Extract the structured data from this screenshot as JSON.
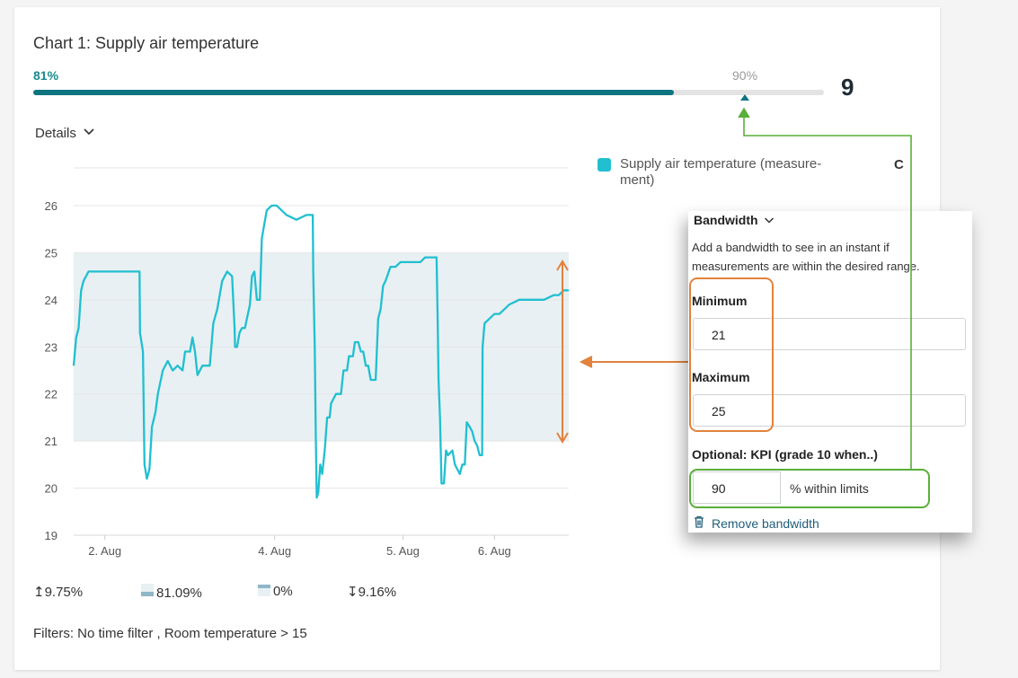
{
  "card": {
    "title": "Chart 1: Supply air temperature",
    "score_current": "81%",
    "score_target": "90%",
    "grade": "9",
    "progress_fraction": 0.81,
    "target_fraction": 0.9,
    "details_label": "Details"
  },
  "colors": {
    "accent": "#0e7480",
    "series": "#21bfd0",
    "band": "#e8f0f3",
    "annotation_orange": "#e2823c",
    "annotation_green": "#5aae3a"
  },
  "legend": {
    "label": "Supply air temperature (measure-ment)",
    "label_line1": "Supply air temperature (measure-",
    "label_line2": "ment)",
    "unit": "C"
  },
  "chart_data": {
    "type": "line",
    "ylim": [
      19,
      26.8
    ],
    "yticks": [
      "19",
      "20",
      "21",
      "22",
      "23",
      "24",
      "25",
      "26"
    ],
    "xlim": [
      0,
      100
    ],
    "xticks": [
      {
        "label": "2. Aug",
        "pos": 6.3
      },
      {
        "label": "4. Aug",
        "pos": 40.6
      },
      {
        "label": "5. Aug",
        "pos": 66.5
      },
      {
        "label": "6. Aug",
        "pos": 85.0
      }
    ],
    "band": [
      21,
      25
    ],
    "series": [
      {
        "values": [
          [
            0,
            22.6
          ],
          [
            0.5,
            23.2
          ],
          [
            1,
            23.4
          ],
          [
            1.5,
            24.2
          ],
          [
            2,
            24.4
          ],
          [
            3,
            24.6
          ],
          [
            5,
            24.6
          ],
          [
            8,
            24.6
          ],
          [
            13.3,
            24.6
          ],
          [
            13.4,
            23.3
          ],
          [
            14,
            22.9
          ],
          [
            14.3,
            20.5
          ],
          [
            14.8,
            20.2
          ],
          [
            15.3,
            20.4
          ],
          [
            15.8,
            21.3
          ],
          [
            16.5,
            21.6
          ],
          [
            17,
            22.0
          ],
          [
            18,
            22.5
          ],
          [
            19,
            22.7
          ],
          [
            20,
            22.5
          ],
          [
            21,
            22.6
          ],
          [
            22,
            22.5
          ],
          [
            22.5,
            22.9
          ],
          [
            23.5,
            22.9
          ],
          [
            24,
            23.2
          ],
          [
            24.5,
            22.9
          ],
          [
            25,
            22.4
          ],
          [
            26,
            22.6
          ],
          [
            27.5,
            22.6
          ],
          [
            28.2,
            23.5
          ],
          [
            29,
            23.8
          ],
          [
            30,
            24.4
          ],
          [
            31,
            24.6
          ],
          [
            32,
            24.5
          ],
          [
            32.5,
            23.4
          ],
          [
            32.6,
            23.0
          ],
          [
            33,
            23.0
          ],
          [
            33.5,
            23.3
          ],
          [
            34,
            23.4
          ],
          [
            34.6,
            23.4
          ],
          [
            35,
            23.6
          ],
          [
            35.6,
            23.9
          ],
          [
            36,
            24.5
          ],
          [
            36.5,
            24.6
          ],
          [
            37,
            24.0
          ],
          [
            37.6,
            24.0
          ],
          [
            38,
            25.3
          ],
          [
            38.5,
            25.6
          ],
          [
            39,
            25.9
          ],
          [
            40,
            26.0
          ],
          [
            41,
            26.0
          ],
          [
            42,
            25.9
          ],
          [
            43,
            25.8
          ],
          [
            45,
            25.7
          ],
          [
            47,
            25.8
          ],
          [
            48.3,
            25.8
          ],
          [
            48.4,
            24.5
          ],
          [
            48.7,
            23.0
          ],
          [
            48.9,
            21.2
          ],
          [
            49.1,
            19.8
          ],
          [
            49.4,
            19.9
          ],
          [
            49.8,
            20.5
          ],
          [
            50.2,
            20.3
          ],
          [
            50.7,
            20.8
          ],
          [
            51.2,
            21.5
          ],
          [
            51.7,
            21.5
          ],
          [
            52,
            21.8
          ],
          [
            53,
            22.0
          ],
          [
            54,
            22.0
          ],
          [
            54.5,
            22.5
          ],
          [
            55.2,
            22.5
          ],
          [
            55.6,
            22.8
          ],
          [
            56.4,
            22.8
          ],
          [
            56.8,
            23.1
          ],
          [
            57.5,
            23.1
          ],
          [
            58,
            22.9
          ],
          [
            58.5,
            22.9
          ],
          [
            59,
            22.6
          ],
          [
            59.5,
            22.6
          ],
          [
            60,
            22.3
          ],
          [
            61,
            22.3
          ],
          [
            61.5,
            23.6
          ],
          [
            62,
            23.8
          ],
          [
            62.5,
            24.3
          ],
          [
            63,
            24.4
          ],
          [
            64,
            24.7
          ],
          [
            65,
            24.7
          ],
          [
            66,
            24.8
          ],
          [
            68,
            24.8
          ],
          [
            70,
            24.8
          ],
          [
            71,
            24.9
          ],
          [
            73,
            24.9
          ],
          [
            73.3,
            24.9
          ],
          [
            73.5,
            23.7
          ],
          [
            73.7,
            22.3
          ],
          [
            74,
            21.5
          ],
          [
            74.3,
            20.1
          ],
          [
            74.8,
            20.1
          ],
          [
            75.2,
            20.8
          ],
          [
            75.6,
            20.7
          ],
          [
            76.5,
            20.8
          ],
          [
            77,
            20.5
          ],
          [
            77.5,
            20.4
          ],
          [
            78,
            20.3
          ],
          [
            78.5,
            20.5
          ],
          [
            79,
            20.5
          ],
          [
            79.4,
            21.4
          ],
          [
            80,
            21.3
          ],
          [
            80.5,
            21.2
          ],
          [
            81,
            21.0
          ],
          [
            81.5,
            20.9
          ],
          [
            82,
            20.7
          ],
          [
            82.5,
            20.7
          ],
          [
            82.6,
            23.0
          ],
          [
            83,
            23.5
          ],
          [
            84,
            23.6
          ],
          [
            85,
            23.7
          ],
          [
            86,
            23.7
          ],
          [
            87,
            23.8
          ],
          [
            88,
            23.9
          ],
          [
            90,
            24.0
          ],
          [
            92,
            24.0
          ],
          [
            95,
            24.0
          ],
          [
            97,
            24.1
          ],
          [
            98,
            24.1
          ],
          [
            99,
            24.2
          ],
          [
            100,
            24.2
          ]
        ]
      }
    ]
  },
  "stats": {
    "above": "9.75%",
    "within": "81.09%",
    "missing": "0%",
    "below": "9.16%"
  },
  "filters": "Filters: No time filter , Room temperature > 15",
  "bandwidth": {
    "heading": "Bandwidth",
    "description": "Add a bandwidth to see in an instant if measurements are within the desired range.",
    "min_label": "Minimum",
    "min_value": "21",
    "max_label": "Maximum",
    "max_value": "25",
    "kpi_label": "Optional: KPI (grade 10 when..)",
    "kpi_value": "90",
    "kpi_suffix": "% within limits",
    "remove_label": "Remove bandwidth"
  }
}
